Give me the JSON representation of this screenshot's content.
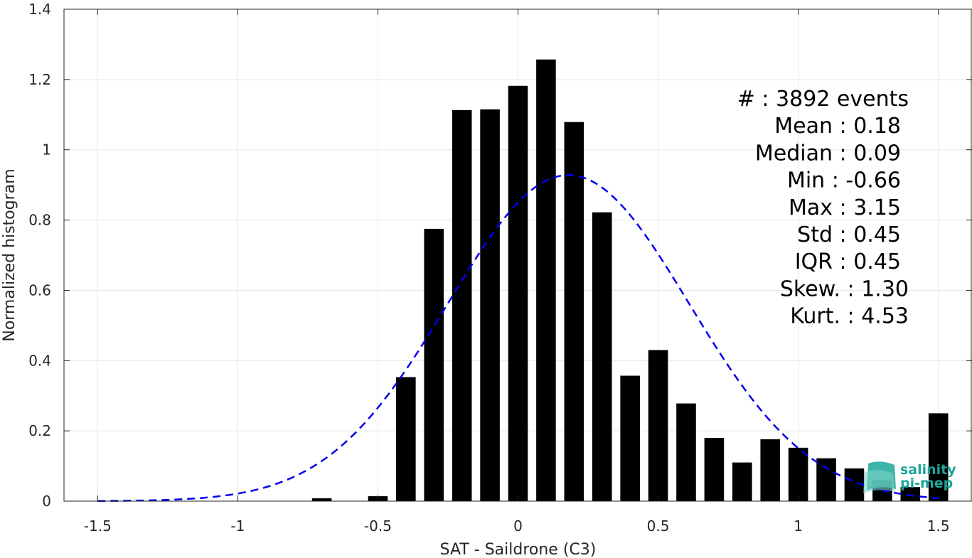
{
  "chart_data": {
    "type": "bar",
    "xlabel": "SAT - Saildrone (C3)",
    "ylabel": "Normalized histogram",
    "xlim": [
      -1.62,
      1.62
    ],
    "ylim": [
      0,
      1.4
    ],
    "xticks": [
      "-1.5",
      "-1",
      "-0.5",
      "0",
      "0.5",
      "1",
      "1.5"
    ],
    "xtick_values": [
      -1.5,
      -1,
      -0.5,
      0,
      0.5,
      1,
      1.5
    ],
    "yticks": [
      "0",
      "0.2",
      "0.4",
      "0.6",
      "0.8",
      "1",
      "1.2",
      "1.4"
    ],
    "ytick_values": [
      0,
      0.2,
      0.4,
      0.6,
      0.8,
      1.0,
      1.2,
      1.4
    ],
    "grid": true,
    "bar_width": 0.07,
    "bar_color": "#000000",
    "bars": [
      {
        "x": -0.7,
        "y": 0.008
      },
      {
        "x": -0.5,
        "y": 0.014
      },
      {
        "x": -0.4,
        "y": 0.353
      },
      {
        "x": -0.3,
        "y": 0.775
      },
      {
        "x": -0.2,
        "y": 1.113
      },
      {
        "x": -0.1,
        "y": 1.115
      },
      {
        "x": 0.0,
        "y": 1.182
      },
      {
        "x": 0.1,
        "y": 1.257
      },
      {
        "x": 0.2,
        "y": 1.079
      },
      {
        "x": 0.3,
        "y": 0.822
      },
      {
        "x": 0.4,
        "y": 0.357
      },
      {
        "x": 0.5,
        "y": 0.43
      },
      {
        "x": 0.6,
        "y": 0.278
      },
      {
        "x": 0.7,
        "y": 0.18
      },
      {
        "x": 0.8,
        "y": 0.11
      },
      {
        "x": 0.9,
        "y": 0.176
      },
      {
        "x": 1.0,
        "y": 0.152
      },
      {
        "x": 1.1,
        "y": 0.122
      },
      {
        "x": 1.2,
        "y": 0.093
      },
      {
        "x": 1.3,
        "y": 0.06
      },
      {
        "x": 1.4,
        "y": 0.04
      },
      {
        "x": 1.5,
        "y": 0.25
      }
    ],
    "fit_curve": {
      "color": "#0000ee",
      "style": "dashed",
      "mean": 0.18,
      "std": 0.43,
      "amplitude": 0.928,
      "x_range": [
        -1.5,
        1.5
      ]
    },
    "stats": [
      {
        "label": "#",
        "sep": ":",
        "value": "3892 events"
      },
      {
        "label": "Mean",
        "sep": ":",
        "value": "0.18"
      },
      {
        "label": "Median",
        "sep": ":",
        "value": "0.09"
      },
      {
        "label": "Min",
        "sep": ":",
        "value": "-0.66"
      },
      {
        "label": "Max",
        "sep": ":",
        "value": "3.15"
      },
      {
        "label": "Std",
        "sep": ":",
        "value": "0.45"
      },
      {
        "label": "IQR",
        "sep": ":",
        "value": "0.45"
      },
      {
        "label": "Skew.",
        "sep": ":",
        "value": "1.30"
      },
      {
        "label": "Kurt.",
        "sep": ":",
        "value": "4.53"
      }
    ]
  },
  "logo": {
    "line1": "salinity",
    "line2": "pi-mep",
    "color": "#1aa79a"
  }
}
